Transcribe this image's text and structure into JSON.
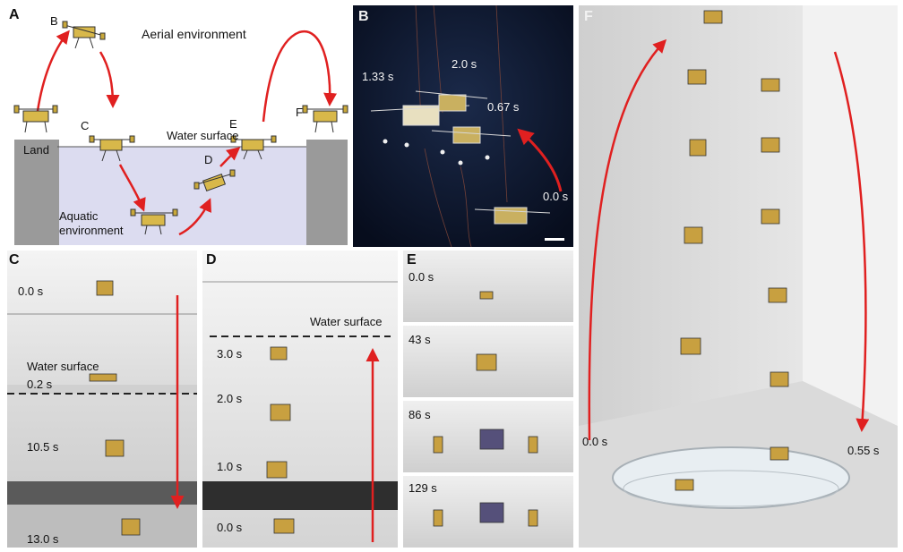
{
  "panels": {
    "a": {
      "label": "A",
      "aerial": "Aerial environment",
      "land": "Land",
      "water_surface": "Water surface",
      "aquatic_line1": "Aquatic",
      "aquatic_line2": "environment",
      "points": {
        "b": "B",
        "c": "C",
        "d": "D",
        "e": "E",
        "f": "F"
      }
    },
    "b": {
      "label": "B",
      "times": [
        "1.33 s",
        "2.0 s",
        "0.67 s",
        "0.0 s"
      ]
    },
    "c": {
      "label": "C",
      "water_surface": "Water surface",
      "times": [
        "0.0 s",
        "0.2 s",
        "10.5 s",
        "13.0 s"
      ]
    },
    "d": {
      "label": "D",
      "water_surface": "Water surface",
      "times": [
        "3.0 s",
        "2.0 s",
        "1.0 s",
        "0.0 s"
      ]
    },
    "e": {
      "label": "E",
      "times": [
        "0.0 s",
        "43 s",
        "86 s",
        "129 s"
      ]
    },
    "f": {
      "label": "F",
      "time_start": "0.0 s",
      "time_end": "0.55 s"
    }
  }
}
